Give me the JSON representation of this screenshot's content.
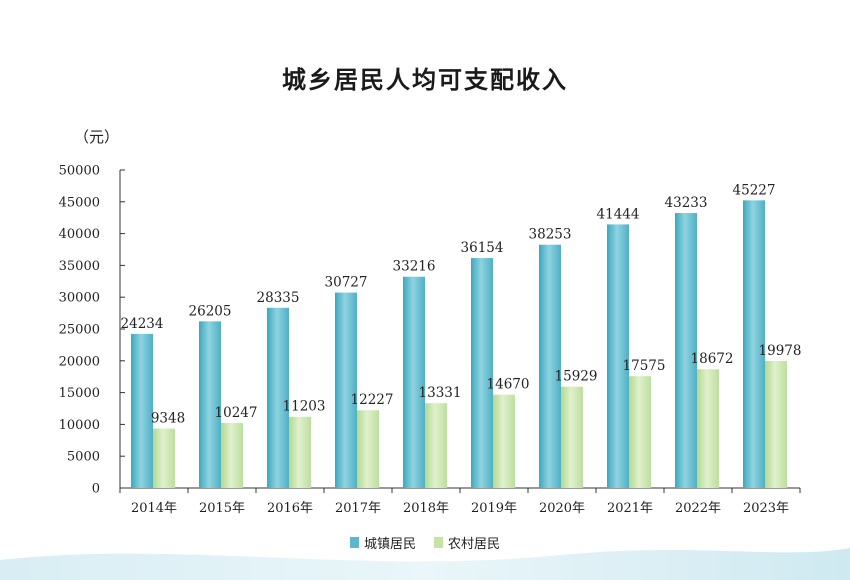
{
  "chart_data": {
    "type": "bar",
    "title": "城乡居民人均可支配收入",
    "ylabel": "（元）",
    "ylim": [
      0,
      50000
    ],
    "yticks": [
      0,
      5000,
      10000,
      15000,
      20000,
      25000,
      30000,
      35000,
      40000,
      45000,
      50000
    ],
    "categories": [
      "2014年",
      "2015年",
      "2016年",
      "2017年",
      "2018年",
      "2019年",
      "2020年",
      "2021年",
      "2022年",
      "2023年"
    ],
    "series": [
      {
        "name": "城镇居民",
        "color": "#5bb8cc",
        "values": [
          24234,
          26205,
          28335,
          30727,
          33216,
          36154,
          38253,
          41444,
          43233,
          45227
        ]
      },
      {
        "name": "农村居民",
        "color": "#c6e2a6",
        "values": [
          9348,
          10247,
          11203,
          12227,
          13331,
          14670,
          15929,
          17575,
          18672,
          19978
        ]
      }
    ],
    "grid": false,
    "legend_position": "bottom"
  }
}
